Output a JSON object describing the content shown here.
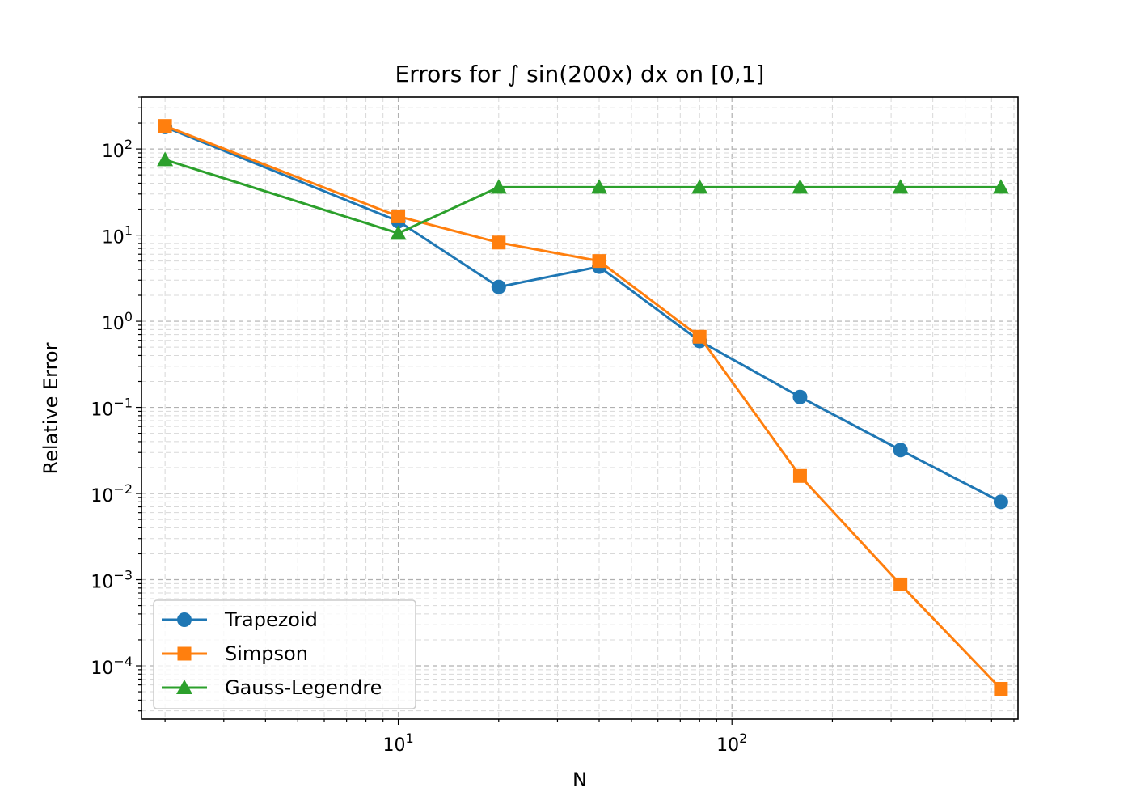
{
  "chart_data": {
    "type": "line",
    "title": "Errors for ∫ sin(200x) dx on [0,1]",
    "xlabel": "N",
    "ylabel": "Relative Error",
    "xscale": "log",
    "yscale": "log",
    "xlim": [
      1.7,
      720
    ],
    "ylim": [
      2.4e-05,
      400
    ],
    "grid": "major and minor, dashed",
    "legend_position": "lower-left",
    "x_ticks": [
      {
        "value": 10,
        "label": "10",
        "exp": "1"
      },
      {
        "value": 100,
        "label": "10",
        "exp": "2"
      }
    ],
    "y_ticks": [
      {
        "value": 100,
        "label": "10",
        "exp": "2"
      },
      {
        "value": 10,
        "label": "10",
        "exp": "1"
      },
      {
        "value": 1,
        "label": "10",
        "exp": "0"
      },
      {
        "value": 0.1,
        "label": "10",
        "exp": "−1"
      },
      {
        "value": 0.01,
        "label": "10",
        "exp": "−2"
      },
      {
        "value": 0.001,
        "label": "10",
        "exp": "−3"
      },
      {
        "value": 0.0001,
        "label": "10",
        "exp": "−4"
      }
    ],
    "x": [
      2,
      10,
      20,
      40,
      80,
      160,
      320,
      640
    ],
    "series": [
      {
        "name": "Trapezoid",
        "color": "#1f77b4",
        "marker": "circle",
        "values": [
          180,
          14.5,
          2.5,
          4.3,
          0.59,
          0.132,
          0.032,
          0.008
        ]
      },
      {
        "name": "Simpson",
        "color": "#ff7f0e",
        "marker": "square",
        "values": [
          185,
          16.5,
          8.2,
          5.0,
          0.66,
          0.016,
          0.00088,
          5.4e-05
        ]
      },
      {
        "name": "Gauss-Legendre",
        "color": "#2ca02c",
        "marker": "triangle",
        "values": [
          75,
          10.5,
          36,
          36,
          36,
          36,
          36,
          36
        ]
      }
    ]
  }
}
